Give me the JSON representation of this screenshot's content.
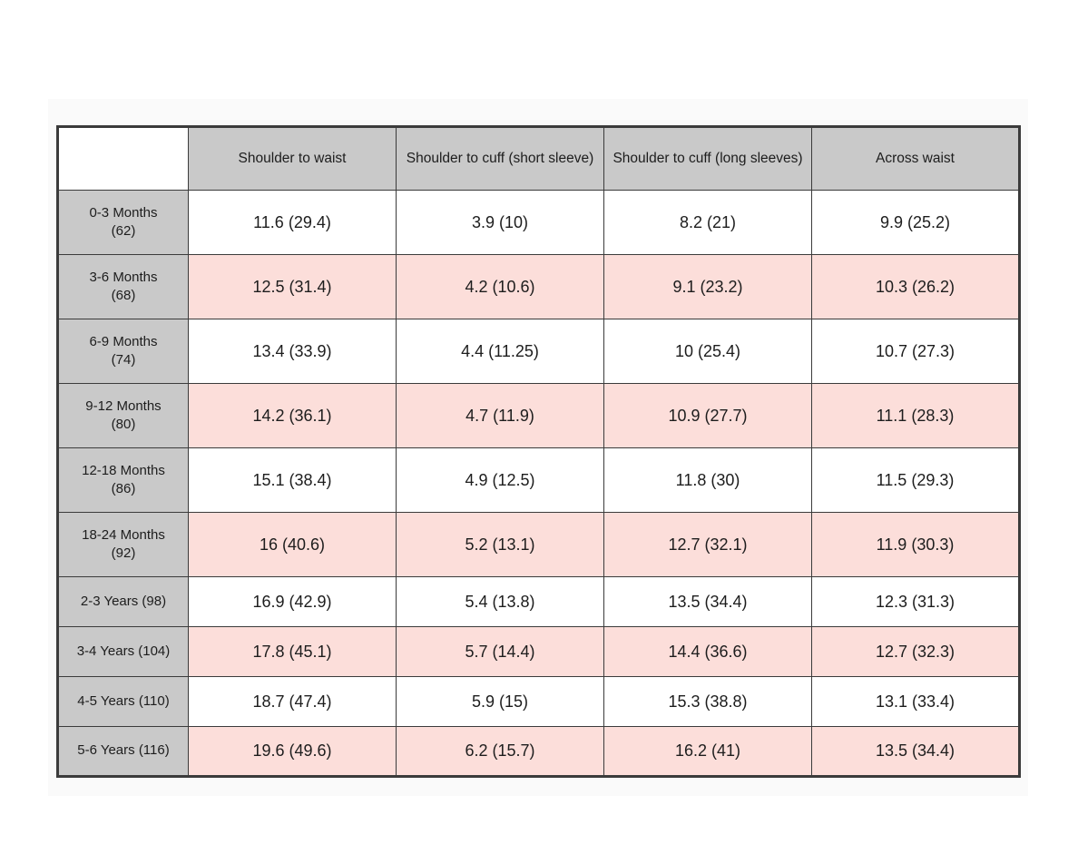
{
  "colors": {
    "page_bg": "#ffffff",
    "panel_bg": "#fafafa",
    "header_bg": "#c9c9c9",
    "row_header_bg": "#c9c9c9",
    "stripe_bg": "#fcdeda",
    "border": "#3b3b3b",
    "text": "#1d1d1d"
  },
  "chart_data": {
    "type": "table",
    "title": "",
    "corner_label": "",
    "columns": [
      "Shoulder to waist",
      "Shoulder to cuff (short sleeve)",
      "Shoulder to cuff (long sleeves)",
      "Across waist"
    ],
    "rows": [
      {
        "label": "0-3 Months",
        "label2": "(62)",
        "values": [
          "11.6 (29.4)",
          "3.9 (10)",
          "8.2 (21)",
          "9.9 (25.2)"
        ]
      },
      {
        "label": "3-6 Months",
        "label2": "(68)",
        "values": [
          "12.5 (31.4)",
          "4.2 (10.6)",
          "9.1 (23.2)",
          "10.3 (26.2)"
        ]
      },
      {
        "label": "6-9 Months",
        "label2": "(74)",
        "values": [
          "13.4 (33.9)",
          "4.4 (11.25)",
          "10 (25.4)",
          "10.7 (27.3)"
        ]
      },
      {
        "label": "9-12 Months",
        "label2": "(80)",
        "values": [
          "14.2 (36.1)",
          "4.7 (11.9)",
          "10.9 (27.7)",
          "11.1 (28.3)"
        ]
      },
      {
        "label": "12-18 Months",
        "label2": "(86)",
        "values": [
          "15.1 (38.4)",
          "4.9 (12.5)",
          "11.8 (30)",
          "11.5 (29.3)"
        ]
      },
      {
        "label": "18-24 Months",
        "label2": "(92)",
        "values": [
          "16 (40.6)",
          "5.2 (13.1)",
          "12.7 (32.1)",
          "11.9 (30.3)"
        ]
      },
      {
        "label": "2-3 Years (98)",
        "label2": null,
        "values": [
          "16.9 (42.9)",
          "5.4 (13.8)",
          "13.5 (34.4)",
          "12.3 (31.3)"
        ]
      },
      {
        "label": "3-4 Years (104)",
        "label2": null,
        "values": [
          "17.8 (45.1)",
          "5.7 (14.4)",
          "14.4 (36.6)",
          "12.7 (32.3)"
        ]
      },
      {
        "label": "4-5 Years (110)",
        "label2": null,
        "values": [
          "18.7 (47.4)",
          "5.9 (15)",
          "15.3 (38.8)",
          "13.1 (33.4)"
        ]
      },
      {
        "label": "5-6 Years (116)",
        "label2": null,
        "values": [
          "19.6 (49.6)",
          "6.2 (15.7)",
          "16.2 (41)",
          "13.5 (34.4)"
        ]
      }
    ]
  }
}
